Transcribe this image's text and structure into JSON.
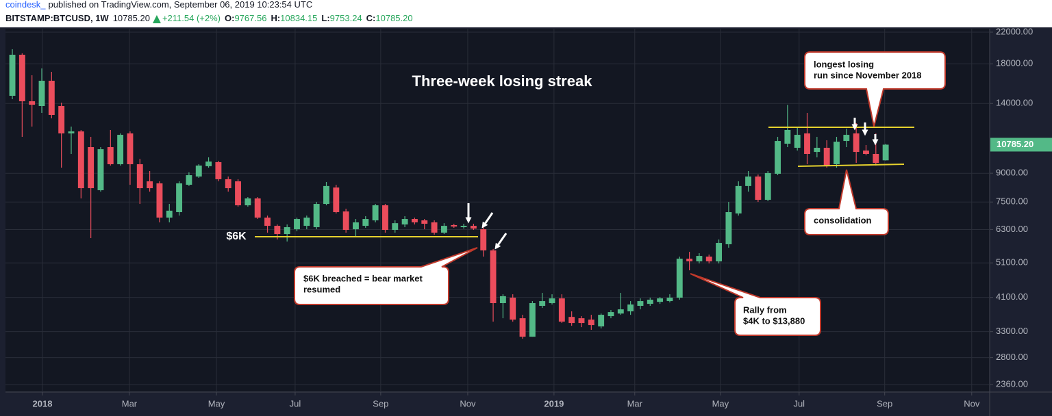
{
  "header": {
    "author": "coindesk_",
    "published": "published on TradingView.com, September 06, 2019 10:23:54 UTC",
    "symbol": "BITSTAMP:BTCUSD, 1W",
    "last": {
      "value": 10785.2,
      "label": "10785.20"
    },
    "change": "+211.54 (+2%)",
    "ohlc": [
      {
        "key": "O:",
        "value": 9767.56
      },
      {
        "key": "H:",
        "value": 10834.15
      },
      {
        "key": "L:",
        "value": 9753.24
      },
      {
        "key": "C:",
        "value": 10785.2,
        "label": "10785.20"
      }
    ]
  },
  "chart_data": {
    "type": "candlestick",
    "title": "Three-week losing streak",
    "log_scale": true,
    "grid": true,
    "up_color": "#53b987",
    "down_color": "#eb4d5c",
    "xlim": [
      -0.7,
      99.6
    ],
    "xticks": [
      {
        "value": 3.07,
        "label": "2018"
      },
      {
        "value": 11.93,
        "label": "Mar"
      },
      {
        "value": 20.8,
        "label": "May"
      },
      {
        "value": 28.82,
        "label": "Jul"
      },
      {
        "value": 37.54,
        "label": "Sep"
      },
      {
        "value": 46.41,
        "label": "Nov"
      },
      {
        "value": 55.2,
        "label": "2019"
      },
      {
        "value": 63.43,
        "label": "Mar"
      },
      {
        "value": 72.16,
        "label": "May"
      },
      {
        "value": 80.18,
        "label": "Jul"
      },
      {
        "value": 88.9,
        "label": "Sep"
      },
      {
        "value": 97.77,
        "label": "Nov"
      }
    ],
    "ylim": [
      2260,
      22480
    ],
    "yticks": [
      {
        "value": 22000,
        "label": "22000.00"
      },
      {
        "value": 18000,
        "label": "18000.00"
      },
      {
        "value": 14000,
        "label": "14000.00"
      },
      {
        "value": 9000,
        "label": "9000.00"
      },
      {
        "value": 7500,
        "label": "7500.00"
      },
      {
        "value": 6300,
        "label": "6300.00"
      },
      {
        "value": 5100,
        "label": "5100.00"
      },
      {
        "value": 4100,
        "label": "4100.00"
      },
      {
        "value": 3300,
        "label": "3300.00"
      },
      {
        "value": 2800,
        "label": "2800.00"
      },
      {
        "value": 2360,
        "label": "2360.00"
      }
    ],
    "open": [
      14700,
      19067,
      14200,
      13775,
      16170,
      13775,
      11582,
      11730,
      10620,
      8082,
      10620,
      9529,
      11582,
      9529,
      8550,
      8440,
      6795,
      7035,
      8367,
      8815,
      9410,
      9655,
      8665,
      8550,
      7346,
      7672,
      6795,
      6450,
      6124,
      6312,
      6450,
      6395,
      7410,
      8222,
      7065,
      6312,
      6450,
      6677,
      7346,
      6285,
      6505,
      6736,
      6677,
      6592,
      6177,
      6480,
      6395,
      6450,
      6312,
      5520,
      3953,
      4091,
      3592,
      3195,
      3885,
      3953,
      4073,
      3622,
      3592,
      3560,
      3410,
      3640,
      3700,
      3752,
      3885,
      3935,
      3985,
      4004,
      4091,
      5237,
      5150,
      5307,
      5150,
      5740,
      6975,
      8300,
      8815,
      7605,
      8970,
      10853,
      10575,
      11582,
      10300,
      10575,
      9529,
      11040,
      11582,
      10392,
      10170,
      9767.56
    ],
    "high": [
      19740,
      19230,
      16742,
      17484,
      17109,
      14077,
      12095,
      11836,
      11333,
      10620,
      11836,
      11582,
      11730,
      9860,
      9125,
      8550,
      7410,
      8550,
      9050,
      9529,
      9952,
      9738,
      8815,
      8665,
      7740,
      7740,
      6884,
      6505,
      6505,
      6795,
      6884,
      7507,
      8515,
      8367,
      7189,
      6736,
      6855,
      7410,
      7410,
      6677,
      6855,
      6795,
      6736,
      6677,
      6560,
      6535,
      6535,
      6535,
      6395,
      5570,
      4181,
      4181,
      3671,
      4004,
      4218,
      4181,
      4181,
      3752,
      3640,
      3671,
      3700,
      3785,
      4218,
      4004,
      4073,
      4091,
      4108,
      4181,
      5307,
      5470,
      5423,
      5375,
      5915,
      7507,
      8550,
      9125,
      8929,
      9125,
      11333,
      13880,
      12095,
      13191,
      11333,
      11090,
      11333,
      11940,
      12360,
      10760,
      11582,
      10834.15
    ],
    "low": [
      14385,
      11333,
      12095,
      13191,
      12740,
      9325,
      10170,
      7672,
      5966,
      8012,
      9450,
      9450,
      8367,
      7410,
      8012,
      6592,
      6592,
      6884,
      8300,
      8738,
      9325,
      8550,
      8012,
      7283,
      7283,
      6736,
      6177,
      5915,
      5840,
      6230,
      6312,
      6312,
      7346,
      6975,
      6177,
      6044,
      6370,
      6592,
      6177,
      6177,
      6395,
      6505,
      6312,
      6100,
      6124,
      6370,
      6340,
      6285,
      5307,
      3515,
      3592,
      3515,
      3154,
      3195,
      3834,
      3918,
      3485,
      3425,
      3395,
      3338,
      3366,
      3592,
      3671,
      3671,
      3800,
      3885,
      3935,
      3970,
      4040,
      4866,
      5082,
      5082,
      5082,
      5615,
      6884,
      8012,
      7507,
      7540,
      8890,
      10620,
      10392,
      9529,
      9952,
      9325,
      9325,
      10620,
      9610,
      10080,
      9450,
      9753.24
    ],
    "close": [
      19067,
      14200,
      13890,
      16170,
      13020,
      11582,
      11730,
      8187,
      8187,
      10480,
      9529,
      11480,
      9529,
      8187,
      8187,
      6795,
      7100,
      8440,
      8890,
      9450,
      9690,
      8665,
      8187,
      7346,
      7672,
      6795,
      6450,
      6124,
      6395,
      6736,
      6795,
      7410,
      8300,
      7035,
      6285,
      6592,
      6736,
      7346,
      6285,
      6560,
      6736,
      6592,
      6535,
      6177,
      6450,
      6420,
      6450,
      6340,
      5520,
      3953,
      4130,
      3560,
      3195,
      3953,
      4004,
      4073,
      3515,
      3485,
      3485,
      3440,
      3671,
      3735,
      3800,
      3918,
      4004,
      4040,
      4073,
      4091,
      5237,
      5150,
      5330,
      5150,
      5788,
      7035,
      8300,
      8815,
      7605,
      9010,
      11040,
      11836,
      11480,
      10170,
      10575,
      9450,
      10990,
      11480,
      10300,
      10170,
      9610,
      10785.2
    ],
    "annotations": {
      "six_k": "$6K",
      "breach": [
        "$6K breached = bear market",
        "resumed"
      ],
      "rally": [
        "Rally from",
        "$4K to $13,880"
      ],
      "longest": [
        "longest losing",
        "run since November 2018"
      ],
      "consolidation": "consolidation"
    }
  }
}
